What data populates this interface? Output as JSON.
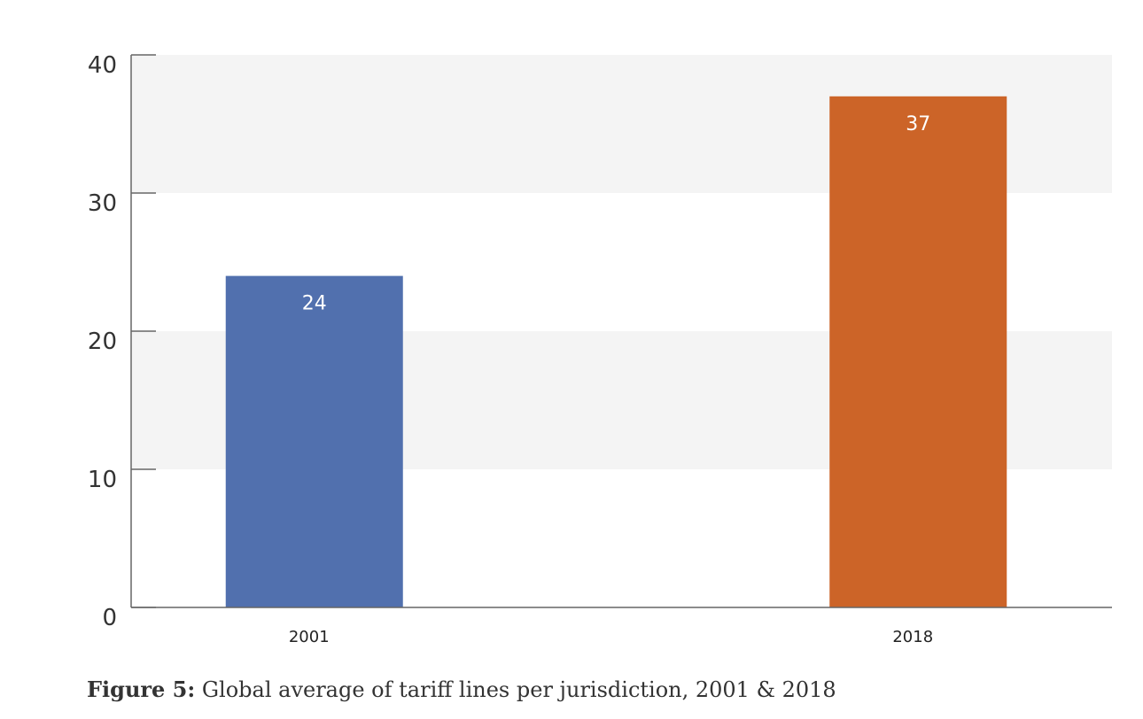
{
  "chart_data": {
    "type": "bar",
    "categories": [
      "2001",
      "2018"
    ],
    "values": [
      24,
      37
    ],
    "data_labels": [
      "24",
      "37"
    ],
    "bar_colors": [
      "#5170AE",
      "#CC6428"
    ],
    "ylim": [
      0,
      40
    ],
    "yticks": [
      "0",
      "10",
      "20",
      "30",
      "40"
    ],
    "xlabel": "",
    "ylabel": "",
    "grid": "alternating horizontal bands",
    "band_color": "#F4F4F4",
    "axis_color": "#666666"
  },
  "caption": {
    "label": "Figure 5:",
    "text": "Global average of tariff lines per jurisdiction, 2001 & 2018"
  }
}
